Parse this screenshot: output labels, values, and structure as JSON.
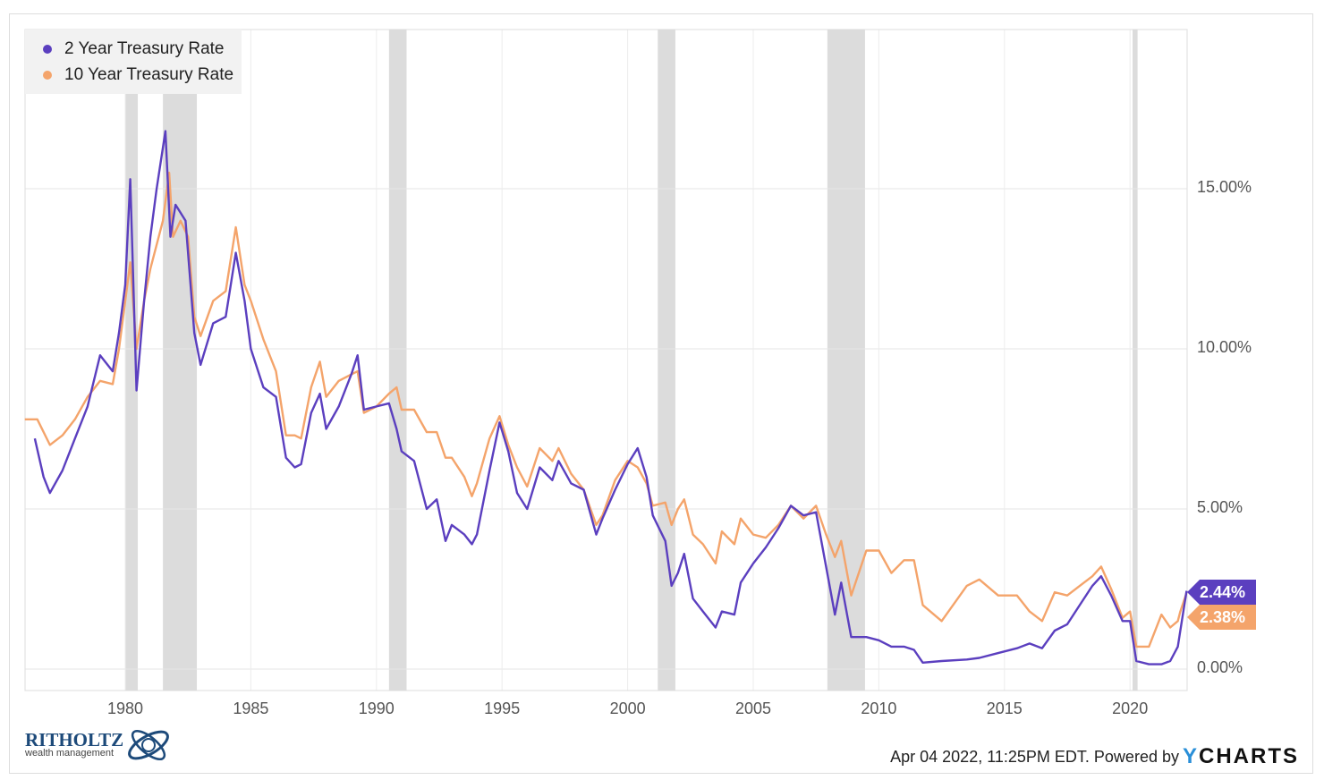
{
  "chart_data": {
    "type": "line",
    "title": "",
    "xlabel": "",
    "ylabel": "",
    "xlim": [
      1976.0,
      2022.3
    ],
    "ylim": [
      -0.65,
      20.0
    ],
    "x_ticks": [
      "1980",
      "1985",
      "1990",
      "1995",
      "2000",
      "2005",
      "2010",
      "2015",
      "2020"
    ],
    "y_ticks": [
      "0.00%",
      "5.00%",
      "10.00%",
      "15.00%"
    ],
    "y_tick_values": [
      0,
      5,
      10,
      15
    ],
    "grid": true,
    "legend_position": "top-left",
    "recessions": [
      [
        1980.0,
        1980.5
      ],
      [
        1981.5,
        1982.85
      ],
      [
        1990.5,
        1991.2
      ],
      [
        2001.2,
        2001.9
      ],
      [
        2007.95,
        2009.45
      ],
      [
        2020.1,
        2020.3
      ]
    ],
    "series": [
      {
        "name": "2 Year Treasury Rate",
        "color": "#5b3fbf",
        "last_label": "2.44%",
        "points": [
          [
            1976.4,
            7.2
          ],
          [
            1976.75,
            6.0
          ],
          [
            1977.0,
            5.5
          ],
          [
            1977.5,
            6.2
          ],
          [
            1978.0,
            7.2
          ],
          [
            1978.5,
            8.2
          ],
          [
            1979.0,
            9.8
          ],
          [
            1979.5,
            9.3
          ],
          [
            1979.75,
            10.5
          ],
          [
            1980.0,
            12.0
          ],
          [
            1980.2,
            15.3
          ],
          [
            1980.45,
            8.7
          ],
          [
            1980.75,
            11.5
          ],
          [
            1981.0,
            13.5
          ],
          [
            1981.25,
            15.0
          ],
          [
            1981.6,
            16.8
          ],
          [
            1981.8,
            13.5
          ],
          [
            1982.0,
            14.5
          ],
          [
            1982.4,
            14.0
          ],
          [
            1982.75,
            10.5
          ],
          [
            1983.0,
            9.5
          ],
          [
            1983.5,
            10.8
          ],
          [
            1984.0,
            11.0
          ],
          [
            1984.4,
            13.0
          ],
          [
            1984.75,
            11.5
          ],
          [
            1985.0,
            10.0
          ],
          [
            1985.5,
            8.8
          ],
          [
            1986.0,
            8.5
          ],
          [
            1986.4,
            6.6
          ],
          [
            1986.75,
            6.3
          ],
          [
            1987.0,
            6.4
          ],
          [
            1987.4,
            8.0
          ],
          [
            1987.75,
            8.6
          ],
          [
            1988.0,
            7.5
          ],
          [
            1988.5,
            8.2
          ],
          [
            1989.0,
            9.2
          ],
          [
            1989.25,
            9.8
          ],
          [
            1989.5,
            8.1
          ],
          [
            1990.0,
            8.2
          ],
          [
            1990.5,
            8.3
          ],
          [
            1990.8,
            7.5
          ],
          [
            1991.0,
            6.8
          ],
          [
            1991.5,
            6.5
          ],
          [
            1992.0,
            5.0
          ],
          [
            1992.4,
            5.3
          ],
          [
            1992.75,
            4.0
          ],
          [
            1993.0,
            4.5
          ],
          [
            1993.5,
            4.2
          ],
          [
            1993.8,
            3.9
          ],
          [
            1994.0,
            4.2
          ],
          [
            1994.5,
            6.2
          ],
          [
            1994.9,
            7.7
          ],
          [
            1995.25,
            6.8
          ],
          [
            1995.6,
            5.5
          ],
          [
            1996.0,
            5.0
          ],
          [
            1996.5,
            6.3
          ],
          [
            1997.0,
            5.9
          ],
          [
            1997.25,
            6.5
          ],
          [
            1997.75,
            5.8
          ],
          [
            1998.25,
            5.6
          ],
          [
            1998.75,
            4.2
          ],
          [
            1999.0,
            4.7
          ],
          [
            1999.5,
            5.6
          ],
          [
            2000.0,
            6.4
          ],
          [
            2000.4,
            6.9
          ],
          [
            2000.75,
            6.0
          ],
          [
            2001.0,
            4.8
          ],
          [
            2001.5,
            4.0
          ],
          [
            2001.75,
            2.6
          ],
          [
            2002.0,
            3.0
          ],
          [
            2002.25,
            3.6
          ],
          [
            2002.6,
            2.2
          ],
          [
            2003.0,
            1.8
          ],
          [
            2003.5,
            1.3
          ],
          [
            2003.75,
            1.8
          ],
          [
            2004.25,
            1.7
          ],
          [
            2004.5,
            2.7
          ],
          [
            2005.0,
            3.3
          ],
          [
            2005.5,
            3.8
          ],
          [
            2006.0,
            4.4
          ],
          [
            2006.5,
            5.1
          ],
          [
            2007.0,
            4.8
          ],
          [
            2007.5,
            4.9
          ],
          [
            2007.9,
            3.2
          ],
          [
            2008.25,
            1.7
          ],
          [
            2008.5,
            2.7
          ],
          [
            2008.9,
            1.0
          ],
          [
            2009.5,
            1.0
          ],
          [
            2010.0,
            0.9
          ],
          [
            2010.5,
            0.7
          ],
          [
            2011.0,
            0.7
          ],
          [
            2011.4,
            0.6
          ],
          [
            2011.75,
            0.2
          ],
          [
            2012.5,
            0.25
          ],
          [
            2013.5,
            0.3
          ],
          [
            2014.0,
            0.35
          ],
          [
            2014.75,
            0.5
          ],
          [
            2015.5,
            0.65
          ],
          [
            2016.0,
            0.8
          ],
          [
            2016.5,
            0.65
          ],
          [
            2017.0,
            1.2
          ],
          [
            2017.5,
            1.4
          ],
          [
            2018.0,
            2.0
          ],
          [
            2018.5,
            2.6
          ],
          [
            2018.85,
            2.9
          ],
          [
            2019.25,
            2.3
          ],
          [
            2019.7,
            1.5
          ],
          [
            2020.0,
            1.5
          ],
          [
            2020.25,
            0.25
          ],
          [
            2020.75,
            0.15
          ],
          [
            2021.25,
            0.15
          ],
          [
            2021.6,
            0.25
          ],
          [
            2021.9,
            0.7
          ],
          [
            2022.0,
            1.2
          ],
          [
            2022.25,
            2.44
          ]
        ]
      },
      {
        "name": "10 Year Treasury Rate",
        "color": "#f4a46b",
        "last_label": "2.38%",
        "points": [
          [
            1976.0,
            7.8
          ],
          [
            1976.5,
            7.8
          ],
          [
            1977.0,
            7.0
          ],
          [
            1977.5,
            7.3
          ],
          [
            1978.0,
            7.8
          ],
          [
            1978.5,
            8.5
          ],
          [
            1979.0,
            9.0
          ],
          [
            1979.5,
            8.9
          ],
          [
            1979.75,
            10.0
          ],
          [
            1980.2,
            12.7
          ],
          [
            1980.45,
            10.0
          ],
          [
            1980.75,
            11.5
          ],
          [
            1981.0,
            12.5
          ],
          [
            1981.5,
            14.0
          ],
          [
            1981.75,
            15.5
          ],
          [
            1981.9,
            13.5
          ],
          [
            1982.2,
            14.0
          ],
          [
            1982.5,
            13.5
          ],
          [
            1982.75,
            11.0
          ],
          [
            1983.0,
            10.4
          ],
          [
            1983.5,
            11.5
          ],
          [
            1984.0,
            11.8
          ],
          [
            1984.4,
            13.8
          ],
          [
            1984.75,
            12.0
          ],
          [
            1985.0,
            11.5
          ],
          [
            1985.5,
            10.3
          ],
          [
            1986.0,
            9.3
          ],
          [
            1986.4,
            7.3
          ],
          [
            1986.75,
            7.3
          ],
          [
            1987.0,
            7.2
          ],
          [
            1987.4,
            8.8
          ],
          [
            1987.75,
            9.6
          ],
          [
            1988.0,
            8.5
          ],
          [
            1988.5,
            9.0
          ],
          [
            1989.0,
            9.2
          ],
          [
            1989.25,
            9.3
          ],
          [
            1989.5,
            8.0
          ],
          [
            1990.0,
            8.2
          ],
          [
            1990.5,
            8.6
          ],
          [
            1990.8,
            8.8
          ],
          [
            1991.0,
            8.1
          ],
          [
            1991.5,
            8.1
          ],
          [
            1992.0,
            7.4
          ],
          [
            1992.4,
            7.4
          ],
          [
            1992.75,
            6.6
          ],
          [
            1993.0,
            6.6
          ],
          [
            1993.5,
            6.0
          ],
          [
            1993.8,
            5.4
          ],
          [
            1994.0,
            5.8
          ],
          [
            1994.5,
            7.2
          ],
          [
            1994.9,
            7.9
          ],
          [
            1995.25,
            7.0
          ],
          [
            1995.6,
            6.3
          ],
          [
            1996.0,
            5.7
          ],
          [
            1996.5,
            6.9
          ],
          [
            1997.0,
            6.5
          ],
          [
            1997.25,
            6.9
          ],
          [
            1997.75,
            6.1
          ],
          [
            1998.25,
            5.6
          ],
          [
            1998.75,
            4.5
          ],
          [
            1999.0,
            4.8
          ],
          [
            1999.5,
            5.9
          ],
          [
            2000.0,
            6.5
          ],
          [
            2000.4,
            6.3
          ],
          [
            2000.75,
            5.8
          ],
          [
            2001.0,
            5.1
          ],
          [
            2001.5,
            5.2
          ],
          [
            2001.75,
            4.5
          ],
          [
            2002.0,
            5.0
          ],
          [
            2002.25,
            5.3
          ],
          [
            2002.6,
            4.2
          ],
          [
            2003.0,
            3.9
          ],
          [
            2003.5,
            3.3
          ],
          [
            2003.75,
            4.3
          ],
          [
            2004.25,
            3.9
          ],
          [
            2004.5,
            4.7
          ],
          [
            2005.0,
            4.2
          ],
          [
            2005.5,
            4.1
          ],
          [
            2006.0,
            4.5
          ],
          [
            2006.5,
            5.1
          ],
          [
            2007.0,
            4.7
          ],
          [
            2007.5,
            5.1
          ],
          [
            2007.9,
            4.2
          ],
          [
            2008.25,
            3.5
          ],
          [
            2008.5,
            4.0
          ],
          [
            2008.9,
            2.3
          ],
          [
            2009.5,
            3.7
          ],
          [
            2010.0,
            3.7
          ],
          [
            2010.5,
            3.0
          ],
          [
            2011.0,
            3.4
          ],
          [
            2011.4,
            3.4
          ],
          [
            2011.75,
            2.0
          ],
          [
            2012.5,
            1.5
          ],
          [
            2013.5,
            2.6
          ],
          [
            2014.0,
            2.8
          ],
          [
            2014.75,
            2.3
          ],
          [
            2015.5,
            2.3
          ],
          [
            2016.0,
            1.8
          ],
          [
            2016.5,
            1.5
          ],
          [
            2017.0,
            2.4
          ],
          [
            2017.5,
            2.3
          ],
          [
            2018.0,
            2.6
          ],
          [
            2018.5,
            2.9
          ],
          [
            2018.85,
            3.2
          ],
          [
            2019.25,
            2.5
          ],
          [
            2019.7,
            1.6
          ],
          [
            2020.0,
            1.8
          ],
          [
            2020.25,
            0.7
          ],
          [
            2020.75,
            0.7
          ],
          [
            2021.25,
            1.7
          ],
          [
            2021.6,
            1.3
          ],
          [
            2021.9,
            1.5
          ],
          [
            2022.0,
            1.8
          ],
          [
            2022.25,
            2.38
          ]
        ]
      }
    ]
  },
  "legend": {
    "items": [
      {
        "label": "2 Year Treasury Rate",
        "color": "#5b3fbf"
      },
      {
        "label": "10 Year Treasury Rate",
        "color": "#f4a46b"
      }
    ]
  },
  "footer": {
    "timestamp": "Apr 04 2022, 11:25PM EDT. Powered by",
    "brand_y": "Y",
    "brand_rest": "CHARTS"
  },
  "logo": {
    "main": "RITHOLTZ",
    "sub": "wealth management"
  }
}
